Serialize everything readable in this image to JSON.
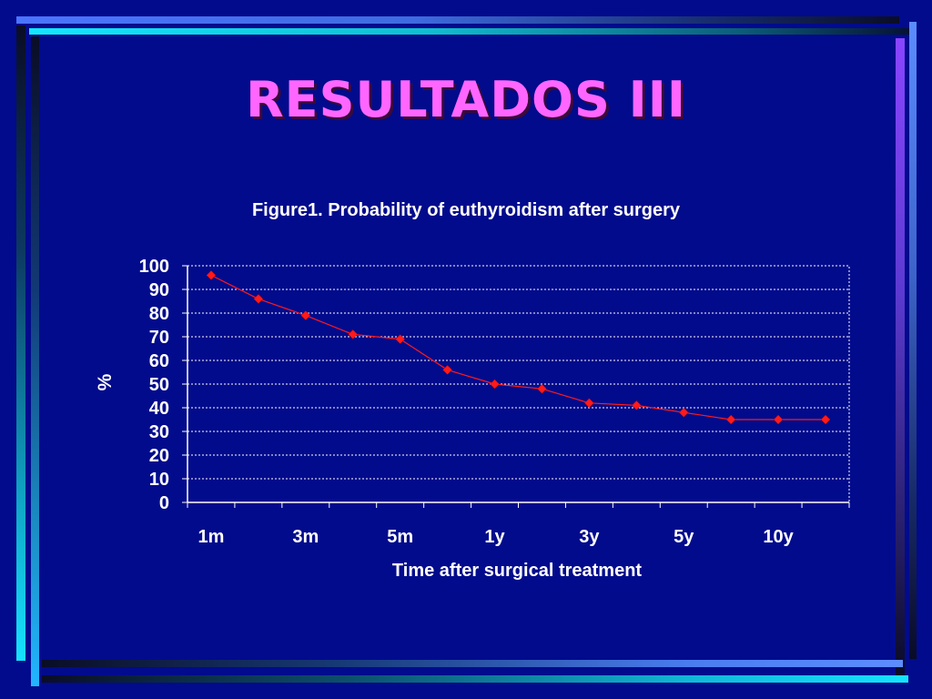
{
  "slide": {
    "title": "RESULTADOS III",
    "title_color": "#ff66ff",
    "background_color": "#020b8c"
  },
  "chart_data": {
    "type": "line",
    "title": "Figure1. Probability of euthyroidism after surgery",
    "xlabel": "Time after surgical treatment",
    "ylabel": "%",
    "ylim": [
      0,
      100
    ],
    "yticks": [
      0,
      10,
      20,
      30,
      40,
      50,
      60,
      70,
      80,
      90,
      100
    ],
    "x_tick_labels": [
      "1m",
      "",
      "3m",
      "",
      "5m",
      "",
      "1y",
      "",
      "3y",
      "",
      "5y",
      "",
      "10y",
      ""
    ],
    "grid": "horizontal dotted",
    "series": [
      {
        "color": "#ff1a1a",
        "marker": "diamond",
        "values": [
          96,
          86,
          79,
          71,
          69,
          56,
          50,
          48,
          42,
          41,
          38,
          35,
          35,
          35
        ]
      }
    ]
  }
}
